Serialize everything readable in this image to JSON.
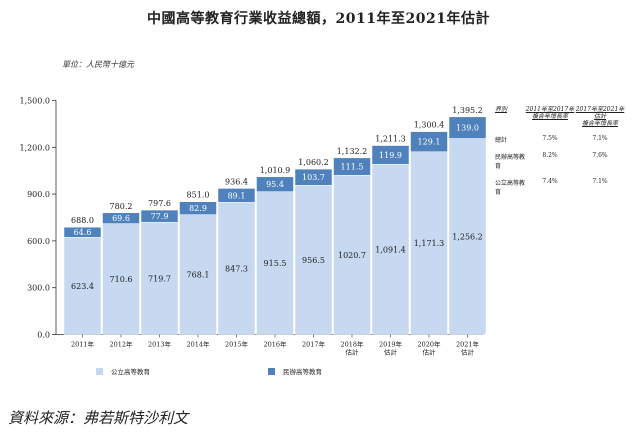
{
  "title": "中國高等教育行業收益總額，2011年至2021年估計",
  "unit": "單位：人民幣十億元",
  "source": "資料來源：弗若斯特沙利文",
  "colors": {
    "public": "#c6d9f1",
    "private": "#4f81bd"
  },
  "legend": {
    "public": "公立高等教育",
    "private": "民辦高等教育"
  },
  "growth_table": {
    "headers": [
      "界別",
      "2011年至2017年複合年增長率",
      "2017年至2021年估計複合年增長率"
    ],
    "header_lines": [
      [
        "2011年至2017年",
        "複合年增長率"
      ],
      [
        "2017年至2021年估計",
        "複合年增長率"
      ]
    ],
    "rows": [
      {
        "label": "總計",
        "cagr_2011_2017": "7.5%",
        "cagr_2017_2021e": "7.1%"
      },
      {
        "label": "民辦高等教育",
        "cagr_2011_2017": "8.2%",
        "cagr_2017_2021e": "7.6%"
      },
      {
        "label": "公立高等教育",
        "cagr_2011_2017": "7.4%",
        "cagr_2017_2021e": "7.1%"
      }
    ]
  },
  "chart_data": {
    "type": "bar",
    "stacked": true,
    "title": "中國高等教育行業收益總額，2011年至2021年估計",
    "categories": [
      "2011年",
      "2012年",
      "2013年",
      "2014年",
      "2015年",
      "2016年",
      "2017年",
      "2018年估計",
      "2019年估計",
      "2020年估計",
      "2021年估計"
    ],
    "category_lines": [
      [
        "2011年"
      ],
      [
        "2012年"
      ],
      [
        "2013年"
      ],
      [
        "2014年"
      ],
      [
        "2015年"
      ],
      [
        "2016年"
      ],
      [
        "2017年"
      ],
      [
        "2018年",
        "估計"
      ],
      [
        "2019年",
        "估計"
      ],
      [
        "2020年",
        "估計"
      ],
      [
        "2021年",
        "估計"
      ]
    ],
    "series": [
      {
        "name": "公立高等教育",
        "values": [
          623.4,
          710.6,
          719.7,
          768.1,
          847.3,
          915.5,
          956.5,
          1020.7,
          1091.4,
          1171.3,
          1256.2
        ],
        "labels": [
          "623.4",
          "710.6",
          "719.7",
          "768.1",
          "847.3",
          "915.5",
          "956.5",
          "1020.7",
          "1,091.4",
          "1,171.3",
          "1,256.2"
        ]
      },
      {
        "name": "民辦高等教育",
        "values": [
          64.6,
          69.6,
          77.9,
          82.9,
          89.1,
          95.4,
          103.7,
          111.5,
          119.9,
          129.1,
          139.0
        ],
        "labels": [
          "64.6",
          "69.6",
          "77.9",
          "82.9",
          "89.1",
          "95.4",
          "103.7",
          "111.5",
          "119.9",
          "129.1",
          "139.0"
        ]
      }
    ],
    "totals": [
      688.0,
      780.2,
      797.6,
      851.0,
      936.4,
      1010.9,
      1060.2,
      1132.2,
      1211.3,
      1300.4,
      1395.2
    ],
    "total_labels": [
      "688.0",
      "780.2",
      "797.6",
      "851.0",
      "936.4",
      "1,010.9",
      "1,060.2",
      "1,132.2",
      "1,211.3",
      "1,300.4",
      "1,395.2"
    ],
    "ylim": [
      0,
      1500
    ],
    "yticks": [
      0,
      300,
      600,
      900,
      1200,
      1500
    ],
    "ytick_labels": [
      "0.0",
      "300.0",
      "600.0",
      "900.0",
      "1,200.0",
      "1,500.0"
    ],
    "xlabel": "",
    "ylabel": "人民幣十億元"
  }
}
